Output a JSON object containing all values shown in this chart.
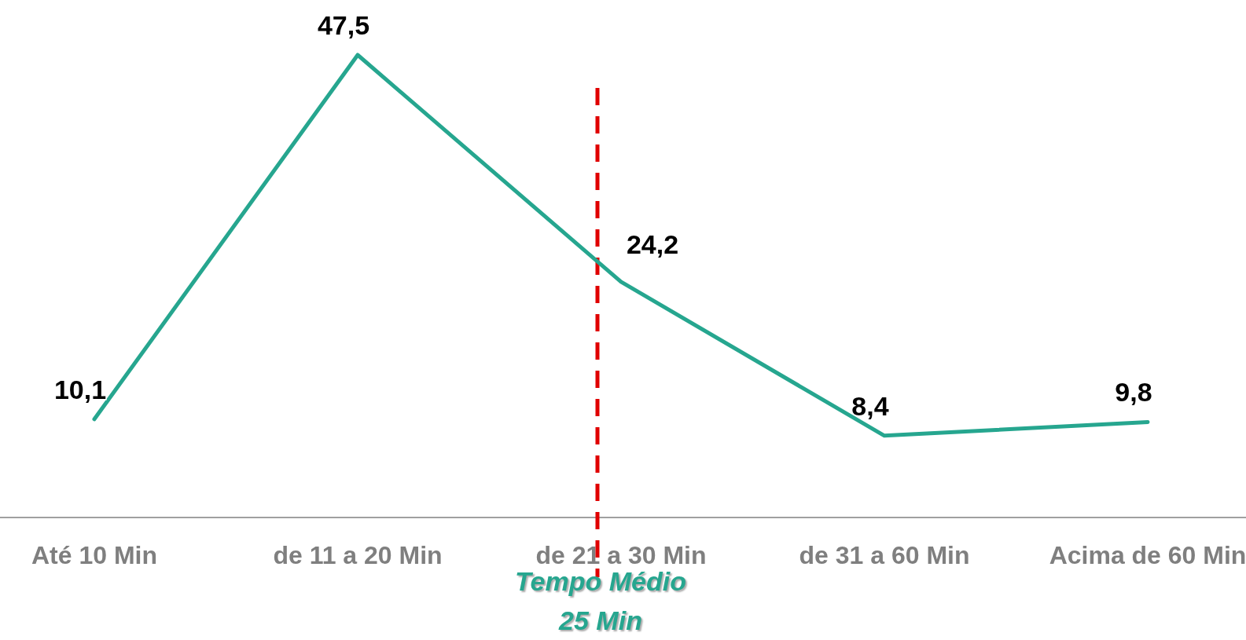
{
  "chart_data": {
    "type": "line",
    "categories": [
      "Até 10 Min",
      "de 11 a 20 Min",
      "de 21 a 30 Min",
      "de 31 a 60 Min",
      "Acima de 60 Min"
    ],
    "series": [
      {
        "color": "#26a68f",
        "values": [
          10.1,
          47.5,
          24.2,
          8.4,
          9.8
        ],
        "value_labels": [
          "10,1",
          "47,5",
          "24,2",
          "8,4",
          "9,8"
        ]
      }
    ],
    "tick_labels": "x",
    "marker": "none",
    "line_style": "solid",
    "ref_lines": [
      {
        "axis": "x",
        "value": "de 21 a 30 Min",
        "label": "Tempo Médio 25 Min",
        "color": "#e00000",
        "line_style": "dashed"
      }
    ]
  }
}
